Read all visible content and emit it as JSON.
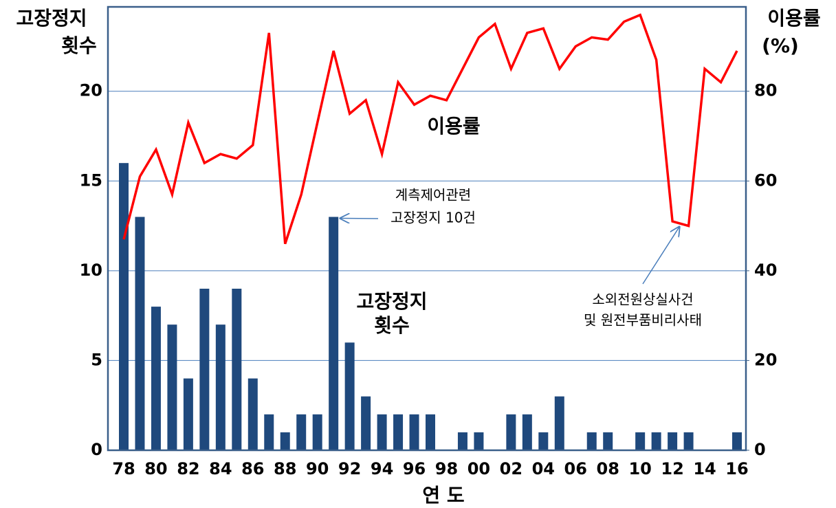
{
  "chart_data": {
    "type": "bar_line",
    "y_title": [
      "고장정지",
      "횟수"
    ],
    "y2_title": [
      "이용률",
      "(%)"
    ],
    "x_title": "연 도",
    "categories": [
      "78",
      null,
      "80",
      null,
      "82",
      null,
      "84",
      null,
      "86",
      null,
      "88",
      null,
      "90",
      null,
      "92",
      null,
      "94",
      null,
      "96",
      null,
      "98",
      null,
      "00",
      null,
      "02",
      null,
      "04",
      null,
      "06",
      null,
      "08",
      null,
      "10",
      null,
      "12",
      null,
      "14",
      null,
      "16"
    ],
    "series": [
      {
        "name": "고장정지 횟수",
        "type": "bar",
        "color": "#1f497d",
        "axis": "y",
        "values": [
          16,
          13,
          8,
          7,
          4,
          9,
          7,
          9,
          4,
          2,
          1,
          2,
          2,
          13,
          6,
          3,
          2,
          2,
          2,
          2,
          0,
          1,
          1,
          0,
          2,
          2,
          1,
          3,
          0,
          1,
          1,
          0,
          1,
          1,
          1,
          1,
          0,
          0,
          1
        ]
      },
      {
        "name": "이용률",
        "type": "line",
        "color": "#ff0000",
        "axis": "y2",
        "values": [
          47,
          61,
          67,
          57,
          73,
          64,
          66,
          65,
          68,
          93,
          46,
          57,
          73,
          89,
          75,
          78,
          66,
          82,
          77,
          79,
          78,
          85,
          92,
          95,
          85,
          93,
          94,
          85,
          90,
          92,
          91.5,
          95.5,
          97,
          87,
          51,
          50,
          85,
          82,
          89
        ]
      }
    ],
    "ylim": [
      0,
      24.7
    ],
    "yticks": [
      0,
      5,
      10,
      15,
      20
    ],
    "y2lim": [
      0,
      98.8
    ],
    "y2ticks": [
      0,
      20,
      40,
      60,
      80
    ],
    "grid": true,
    "annotations": [
      {
        "lines": [
          "이용률"
        ],
        "bold": true
      },
      {
        "lines": [
          "고장정지",
          "횟수"
        ],
        "bold": true
      },
      {
        "lines": [
          "계측제어관련",
          "고장정지 10건"
        ],
        "bold": false,
        "arrow_to": 13
      },
      {
        "lines": [
          "소외전원상실사건",
          "및 원전부품비리사태"
        ],
        "bold": false,
        "arrow_to": 34
      }
    ]
  }
}
